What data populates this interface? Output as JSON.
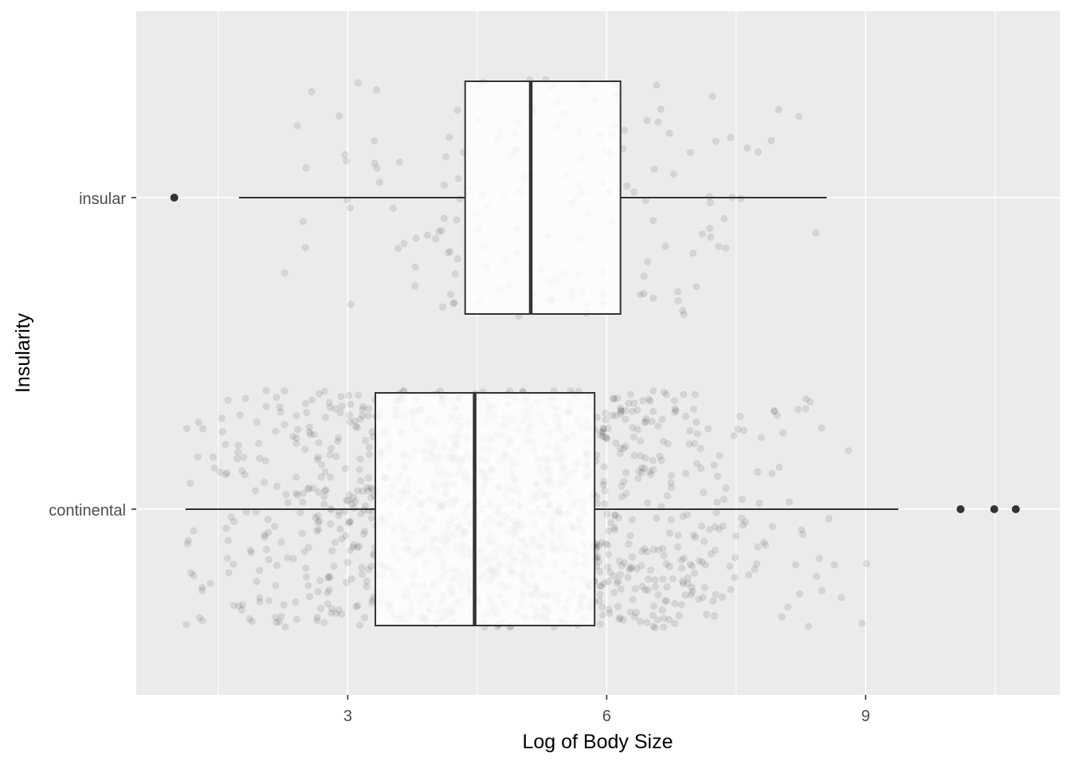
{
  "chart_data": {
    "type": "boxplot",
    "orientation": "horizontal",
    "xlabel": "Log of Body Size",
    "ylabel": "Insularity",
    "xlim": [
      0.55,
      11.25
    ],
    "x_ticks": [
      3,
      6,
      9
    ],
    "x_tick_labels": [
      "3",
      "6",
      "9"
    ],
    "categories": [
      "continental",
      "insular"
    ],
    "background": "#ebebeb",
    "grid": true,
    "jitter_points": "semi-transparent grey points jittered over each box",
    "boxes": [
      {
        "category": "continental",
        "whisker_low": 1.12,
        "q1": 3.32,
        "median": 4.47,
        "q3": 5.86,
        "whisker_high": 9.38,
        "outliers": [
          10.1,
          10.49,
          10.74
        ]
      },
      {
        "category": "insular",
        "whisker_low": 1.74,
        "q1": 4.36,
        "median": 5.12,
        "q3": 6.16,
        "whisker_high": 8.55,
        "outliers": [
          0.99
        ]
      }
    ]
  }
}
